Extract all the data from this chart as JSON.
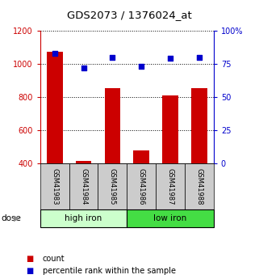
{
  "title": "GDS2073 / 1376024_at",
  "categories": [
    "GSM41983",
    "GSM41984",
    "GSM41985",
    "GSM41986",
    "GSM41987",
    "GSM41988"
  ],
  "bar_values": [
    1075,
    415,
    855,
    475,
    808,
    852
  ],
  "percentile_values": [
    83,
    72,
    80,
    73,
    79,
    80
  ],
  "bar_color": "#cc0000",
  "dot_color": "#0000cc",
  "ylim_left": [
    400,
    1200
  ],
  "ylim_right": [
    0,
    100
  ],
  "yticks_left": [
    400,
    600,
    800,
    1000,
    1200
  ],
  "yticks_right": [
    0,
    25,
    50,
    75,
    100
  ],
  "ytick_labels_right": [
    "0",
    "25",
    "50",
    "75",
    "100%"
  ],
  "groups": [
    {
      "label": "high iron",
      "indices": [
        0,
        1,
        2
      ],
      "color": "#ccffcc"
    },
    {
      "label": "low iron",
      "indices": [
        3,
        4,
        5
      ],
      "color": "#44dd44"
    }
  ],
  "dose_label": "dose",
  "legend_count": "count",
  "legend_percentile": "percentile rank within the sample",
  "left_axis_color": "#cc0000",
  "right_axis_color": "#0000cc",
  "label_box_color": "#cccccc",
  "fig_width": 3.21,
  "fig_height": 3.45,
  "dpi": 100
}
